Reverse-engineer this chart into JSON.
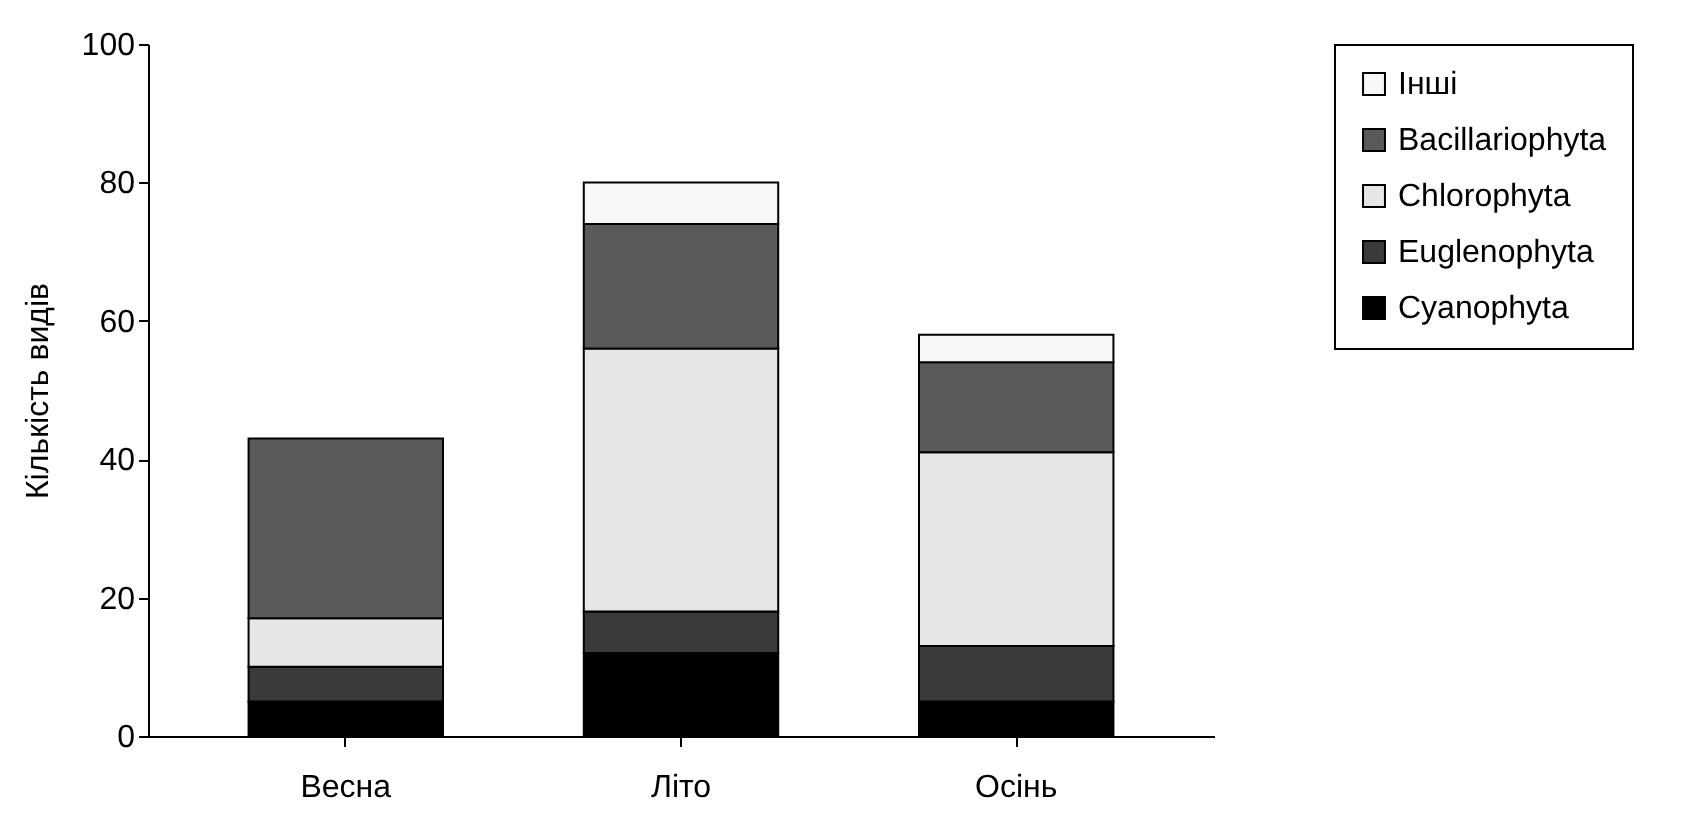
{
  "chart_data": {
    "type": "bar",
    "stacked": true,
    "ylabel": "Кількість видів",
    "categories": [
      "Весна",
      "Літо",
      "Осінь"
    ],
    "series": [
      {
        "name": "Cyanophyta",
        "color": "#000000",
        "values": [
          5,
          12,
          5
        ]
      },
      {
        "name": "Euglenophyta",
        "color": "#3a3a3a",
        "values": [
          5,
          6,
          8
        ]
      },
      {
        "name": "Chlorophyta",
        "color": "#e6e6e6",
        "values": [
          7,
          38,
          28
        ]
      },
      {
        "name": "Bacillariophyta",
        "color": "#5a5a5a",
        "values": [
          26,
          18,
          13
        ]
      },
      {
        "name": "Інші",
        "color": "#f7f7f7",
        "values": [
          null,
          6,
          4
        ]
      }
    ],
    "ylim": [
      0,
      100
    ],
    "yticks": [
      0,
      20,
      40,
      60,
      80,
      100
    ],
    "grid": false,
    "legend": "right"
  }
}
